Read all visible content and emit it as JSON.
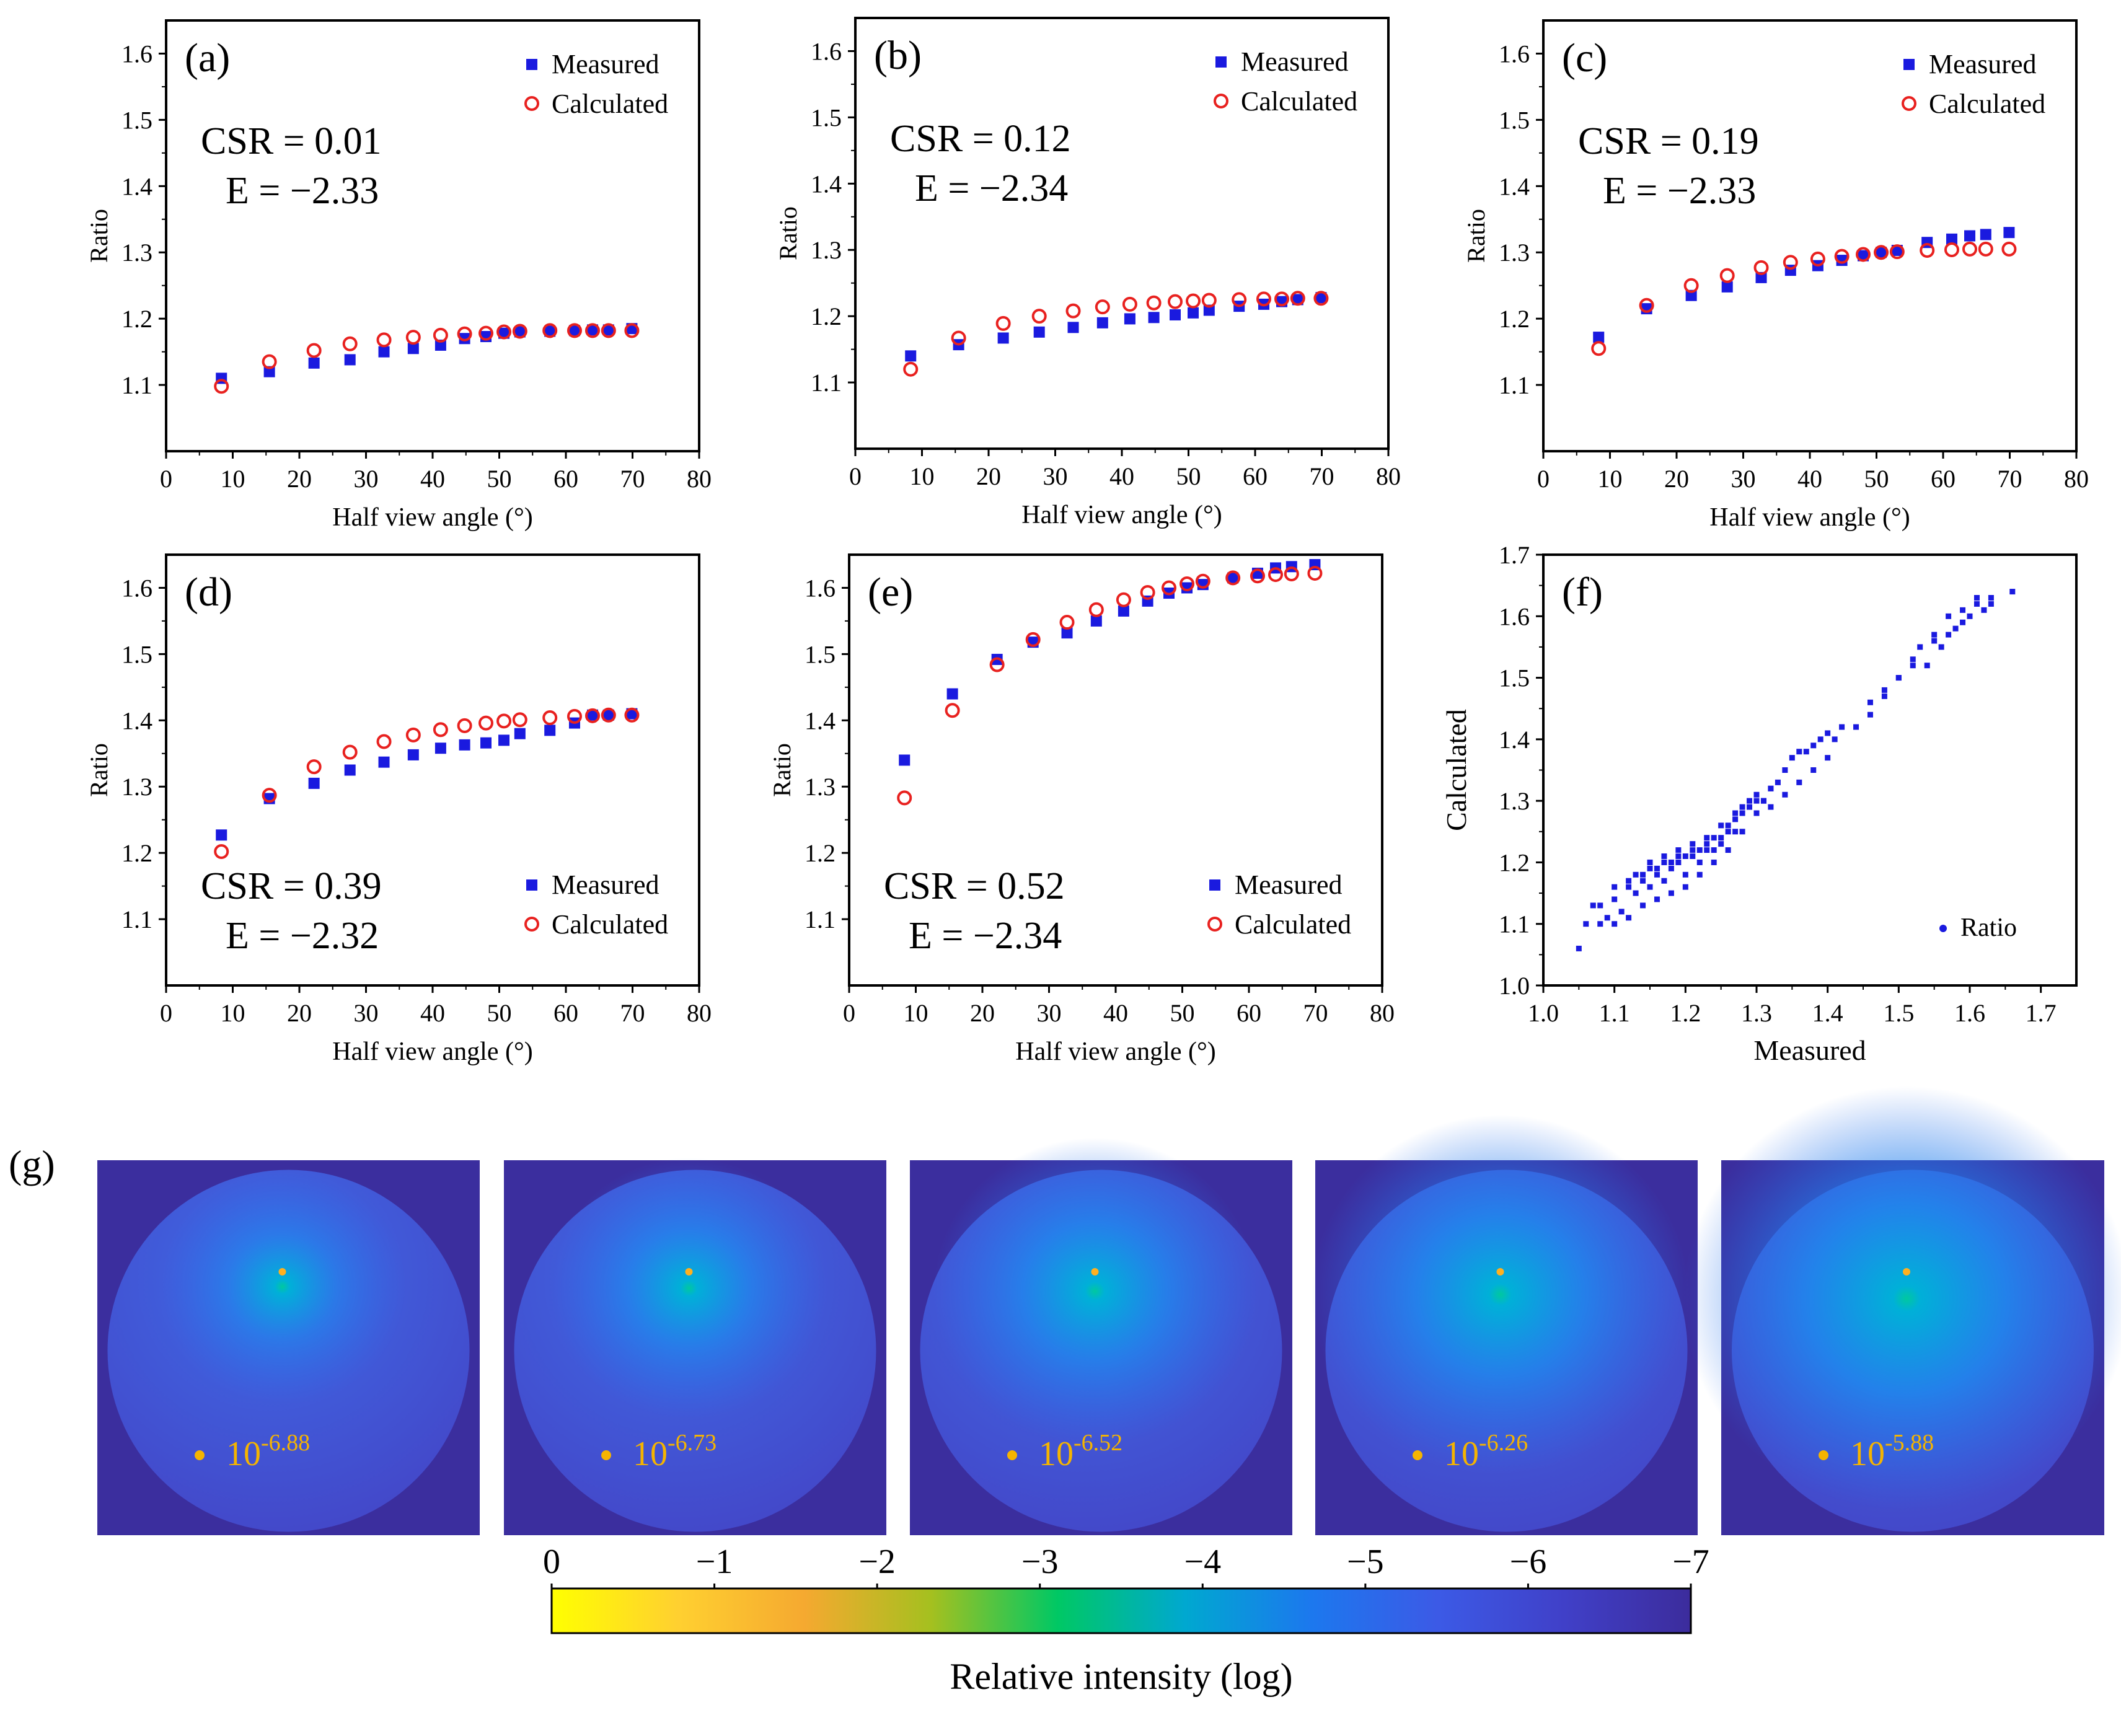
{
  "figure": {
    "panel_g_label": "(g)",
    "colorbar": {
      "title": "Relative intensity (log)",
      "ticks": [
        "0",
        "−1",
        "−2",
        "−3",
        "−4",
        "−5",
        "−6",
        "−7"
      ],
      "range": [
        0,
        -7
      ],
      "colors": [
        "#ffff00",
        "#ffd030",
        "#f5a930",
        "#a5c01f",
        "#00c864",
        "#00a8d0",
        "#1c78ee",
        "#3c5ae6",
        "#4040c8",
        "#3c2c9c"
      ]
    },
    "maps": [
      {
        "base_label": "10",
        "exponent": "-6.88",
        "glow_strength": 0.55,
        "glow_size": 0.36
      },
      {
        "base_label": "10",
        "exponent": "-6.73",
        "glow_strength": 0.65,
        "glow_size": 0.4
      },
      {
        "base_label": "10",
        "exponent": "-6.52",
        "glow_strength": 0.7,
        "glow_size": 0.47
      },
      {
        "base_label": "10",
        "exponent": "-6.26",
        "glow_strength": 0.75,
        "glow_size": 0.55
      },
      {
        "base_label": "10",
        "exponent": "-5.88",
        "glow_strength": 0.8,
        "glow_size": 0.65
      }
    ]
  },
  "colors": {
    "measured": "#1a1adf",
    "calculated": "#e8211f",
    "scatter": "#1a1adf",
    "label_yellow": "#f5b400",
    "map_background": "#3b2e9e"
  },
  "chart_data": [
    {
      "panel": "(a)",
      "type": "scatter",
      "xlabel": "Half view angle (°)",
      "ylabel": "Ratio",
      "xlim": [
        0,
        80
      ],
      "ylim": [
        1.0,
        1.65
      ],
      "xticks": [
        0,
        10,
        20,
        30,
        40,
        50,
        60,
        70,
        80
      ],
      "yticks": [
        1.1,
        1.2,
        1.3,
        1.4,
        1.5,
        1.6
      ],
      "annotations": [
        "CSR = 0.01",
        "E = −2.33"
      ],
      "legend": "top-right",
      "series": [
        {
          "name": "Measured",
          "x": [
            8.3,
            15.5,
            22.2,
            27.6,
            32.7,
            37.1,
            41.2,
            44.8,
            48.0,
            50.7,
            53.1,
            57.6,
            61.3,
            64.0,
            66.4,
            69.9
          ],
          "y": [
            1.11,
            1.12,
            1.133,
            1.138,
            1.15,
            1.155,
            1.16,
            1.17,
            1.173,
            1.178,
            1.18,
            1.181,
            1.182,
            1.183,
            1.183,
            1.185
          ]
        },
        {
          "name": "Calculated",
          "x": [
            8.3,
            15.5,
            22.2,
            27.6,
            32.7,
            37.1,
            41.2,
            44.8,
            48.0,
            50.7,
            53.1,
            57.6,
            61.3,
            64.0,
            66.4,
            69.9
          ],
          "y": [
            1.098,
            1.135,
            1.152,
            1.162,
            1.168,
            1.172,
            1.175,
            1.177,
            1.178,
            1.18,
            1.181,
            1.182,
            1.182,
            1.182,
            1.182,
            1.182
          ]
        }
      ]
    },
    {
      "panel": "(b)",
      "type": "scatter",
      "xlabel": "Half view angle (°)",
      "ylabel": "Ratio",
      "xlim": [
        0,
        80
      ],
      "ylim": [
        1.0,
        1.65
      ],
      "xticks": [
        0,
        10,
        20,
        30,
        40,
        50,
        60,
        70,
        80
      ],
      "yticks": [
        1.1,
        1.2,
        1.3,
        1.4,
        1.5,
        1.6
      ],
      "annotations": [
        "CSR = 0.12",
        "E = −2.34"
      ],
      "legend": "top-right",
      "series": [
        {
          "name": "Measured",
          "x": [
            8.3,
            15.5,
            22.2,
            27.6,
            32.7,
            37.1,
            41.2,
            44.8,
            48.0,
            50.7,
            53.1,
            57.6,
            61.3,
            64.0,
            66.4,
            69.9
          ],
          "y": [
            1.14,
            1.157,
            1.167,
            1.176,
            1.183,
            1.19,
            1.196,
            1.198,
            1.202,
            1.205,
            1.209,
            1.215,
            1.218,
            1.222,
            1.225,
            1.228
          ]
        },
        {
          "name": "Calculated",
          "x": [
            8.3,
            15.5,
            22.2,
            27.6,
            32.7,
            37.1,
            41.2,
            44.8,
            48.0,
            50.7,
            53.1,
            57.6,
            61.3,
            64.0,
            66.4,
            69.9
          ],
          "y": [
            1.12,
            1.167,
            1.189,
            1.2,
            1.208,
            1.214,
            1.218,
            1.22,
            1.222,
            1.223,
            1.224,
            1.225,
            1.226,
            1.226,
            1.227,
            1.227
          ]
        }
      ]
    },
    {
      "panel": "(c)",
      "type": "scatter",
      "xlabel": "Half view angle (°)",
      "ylabel": "Ratio",
      "xlim": [
        0,
        80
      ],
      "ylim": [
        1.0,
        1.65
      ],
      "xticks": [
        0,
        10,
        20,
        30,
        40,
        50,
        60,
        70,
        80
      ],
      "yticks": [
        1.1,
        1.2,
        1.3,
        1.4,
        1.5,
        1.6
      ],
      "annotations": [
        "CSR = 0.19",
        "E = −2.33"
      ],
      "legend": "top-right",
      "series": [
        {
          "name": "Measured",
          "x": [
            8.3,
            15.5,
            22.2,
            27.6,
            32.7,
            37.1,
            41.2,
            44.8,
            48.0,
            50.7,
            53.1,
            57.6,
            61.3,
            64.0,
            66.4,
            69.9
          ],
          "y": [
            1.172,
            1.215,
            1.235,
            1.248,
            1.262,
            1.273,
            1.28,
            1.288,
            1.295,
            1.3,
            1.303,
            1.315,
            1.32,
            1.325,
            1.327,
            1.33
          ]
        },
        {
          "name": "Calculated",
          "x": [
            8.3,
            15.5,
            22.2,
            27.6,
            32.7,
            37.1,
            41.2,
            44.8,
            48.0,
            50.7,
            53.1,
            57.6,
            61.3,
            64.0,
            66.4,
            69.9
          ],
          "y": [
            1.155,
            1.22,
            1.25,
            1.265,
            1.277,
            1.285,
            1.29,
            1.294,
            1.297,
            1.3,
            1.301,
            1.303,
            1.304,
            1.305,
            1.305,
            1.305
          ]
        }
      ]
    },
    {
      "panel": "(d)",
      "type": "scatter",
      "xlabel": "Half view angle (°)",
      "ylabel": "Ratio",
      "xlim": [
        0,
        80
      ],
      "ylim": [
        1.0,
        1.65
      ],
      "xticks": [
        0,
        10,
        20,
        30,
        40,
        50,
        60,
        70,
        80
      ],
      "yticks": [
        1.1,
        1.2,
        1.3,
        1.4,
        1.5,
        1.6
      ],
      "annotations": [
        "CSR = 0.39",
        "E = −2.32"
      ],
      "legend": "bottom-right",
      "series": [
        {
          "name": "Measured",
          "x": [
            8.3,
            15.5,
            22.2,
            27.6,
            32.7,
            37.1,
            41.2,
            44.8,
            48.0,
            50.7,
            53.1,
            57.6,
            61.3,
            64.0,
            66.4,
            69.9
          ],
          "y": [
            1.227,
            1.282,
            1.305,
            1.325,
            1.337,
            1.348,
            1.358,
            1.363,
            1.366,
            1.37,
            1.38,
            1.385,
            1.396,
            1.408,
            1.408,
            1.41
          ]
        },
        {
          "name": "Calculated",
          "x": [
            8.3,
            15.5,
            22.2,
            27.6,
            32.7,
            37.1,
            41.2,
            44.8,
            48.0,
            50.7,
            53.1,
            57.6,
            61.3,
            64.0,
            66.4,
            69.9
          ],
          "y": [
            1.202,
            1.287,
            1.33,
            1.352,
            1.368,
            1.378,
            1.386,
            1.392,
            1.396,
            1.399,
            1.401,
            1.404,
            1.406,
            1.407,
            1.408,
            1.408
          ]
        }
      ]
    },
    {
      "panel": "(e)",
      "type": "scatter",
      "xlabel": "Half view angle (°)",
      "ylabel": "Ratio",
      "xlim": [
        0,
        80
      ],
      "ylim": [
        1.0,
        1.65
      ],
      "xticks": [
        0,
        10,
        20,
        30,
        40,
        50,
        60,
        70,
        80
      ],
      "yticks": [
        1.1,
        1.2,
        1.3,
        1.4,
        1.5,
        1.6
      ],
      "annotations": [
        "CSR = 0.52",
        "E = −2.34"
      ],
      "legend": "bottom-right",
      "series": [
        {
          "name": "Measured",
          "x": [
            8.3,
            15.5,
            22.2,
            27.6,
            32.7,
            37.1,
            41.2,
            44.8,
            48.0,
            50.7,
            53.1,
            57.6,
            61.3,
            64.0,
            66.4,
            69.9
          ],
          "y": [
            1.34,
            1.44,
            1.492,
            1.518,
            1.532,
            1.55,
            1.565,
            1.58,
            1.592,
            1.6,
            1.605,
            1.615,
            1.622,
            1.63,
            1.632,
            1.635
          ]
        },
        {
          "name": "Calculated",
          "x": [
            8.3,
            15.5,
            22.2,
            27.6,
            32.7,
            37.1,
            41.2,
            44.8,
            48.0,
            50.7,
            53.1,
            57.6,
            61.3,
            64.0,
            66.4,
            69.9
          ],
          "y": [
            1.283,
            1.415,
            1.484,
            1.522,
            1.548,
            1.567,
            1.582,
            1.593,
            1.6,
            1.606,
            1.61,
            1.615,
            1.618,
            1.62,
            1.621,
            1.622
          ]
        }
      ]
    },
    {
      "panel": "(f)",
      "type": "scatter",
      "xlabel": "Measured",
      "ylabel": "Calculated",
      "xlim": [
        1.0,
        1.75
      ],
      "ylim": [
        1.0,
        1.7
      ],
      "xticks": [
        1.0,
        1.1,
        1.2,
        1.3,
        1.4,
        1.5,
        1.6,
        1.7
      ],
      "yticks": [
        1.0,
        1.1,
        1.2,
        1.3,
        1.4,
        1.5,
        1.6,
        1.7
      ],
      "legend": "bottom-right",
      "series": [
        {
          "name": "Ratio",
          "x": [
            1.05,
            1.06,
            1.07,
            1.08,
            1.09,
            1.1,
            1.11,
            1.12,
            1.13,
            1.14,
            1.15,
            1.16,
            1.17,
            1.18,
            1.19,
            1.2,
            1.21,
            1.22,
            1.23,
            1.24,
            1.25,
            1.26,
            1.27,
            1.28,
            1.29,
            1.3,
            1.31,
            1.32,
            1.33,
            1.34,
            1.35,
            1.36,
            1.37,
            1.38,
            1.39,
            1.4,
            1.41,
            1.42,
            1.44,
            1.46,
            1.48,
            1.5,
            1.52,
            1.54,
            1.55,
            1.56,
            1.57,
            1.58,
            1.59,
            1.6,
            1.61,
            1.62,
            1.63,
            1.66,
            1.1,
            1.12,
            1.14,
            1.16,
            1.18,
            1.2,
            1.22,
            1.24,
            1.26,
            1.28,
            1.3,
            1.32,
            1.34,
            1.36,
            1.38,
            1.4,
            1.08,
            1.1,
            1.12,
            1.14,
            1.16,
            1.18,
            1.2,
            1.22,
            1.24,
            1.26,
            1.28,
            1.3,
            1.32,
            1.15,
            1.17,
            1.19,
            1.21,
            1.23,
            1.25,
            1.27,
            1.29,
            1.31,
            1.13,
            1.15,
            1.17,
            1.19,
            1.21,
            1.23,
            1.25,
            1.27,
            1.53,
            1.55,
            1.57,
            1.59,
            1.61,
            1.63,
            1.5,
            1.52,
            1.48,
            1.46
          ],
          "y": [
            1.06,
            1.1,
            1.13,
            1.1,
            1.11,
            1.14,
            1.12,
            1.16,
            1.15,
            1.17,
            1.16,
            1.18,
            1.17,
            1.19,
            1.2,
            1.18,
            1.21,
            1.2,
            1.22,
            1.22,
            1.23,
            1.25,
            1.27,
            1.28,
            1.3,
            1.3,
            1.3,
            1.32,
            1.33,
            1.35,
            1.37,
            1.38,
            1.38,
            1.39,
            1.4,
            1.41,
            1.4,
            1.42,
            1.42,
            1.44,
            1.48,
            1.5,
            1.52,
            1.52,
            1.56,
            1.55,
            1.57,
            1.58,
            1.59,
            1.6,
            1.62,
            1.61,
            1.63,
            1.64,
            1.1,
            1.11,
            1.13,
            1.14,
            1.15,
            1.16,
            1.18,
            1.2,
            1.22,
            1.25,
            1.28,
            1.29,
            1.31,
            1.33,
            1.35,
            1.37,
            1.13,
            1.16,
            1.17,
            1.18,
            1.19,
            1.2,
            1.21,
            1.22,
            1.24,
            1.26,
            1.29,
            1.31,
            1.32,
            1.2,
            1.21,
            1.22,
            1.23,
            1.24,
            1.26,
            1.28,
            1.29,
            1.3,
            1.18,
            1.19,
            1.2,
            1.21,
            1.22,
            1.23,
            1.24,
            1.25,
            1.55,
            1.57,
            1.6,
            1.61,
            1.63,
            1.62,
            1.5,
            1.53,
            1.47,
            1.46
          ]
        }
      ]
    }
  ]
}
